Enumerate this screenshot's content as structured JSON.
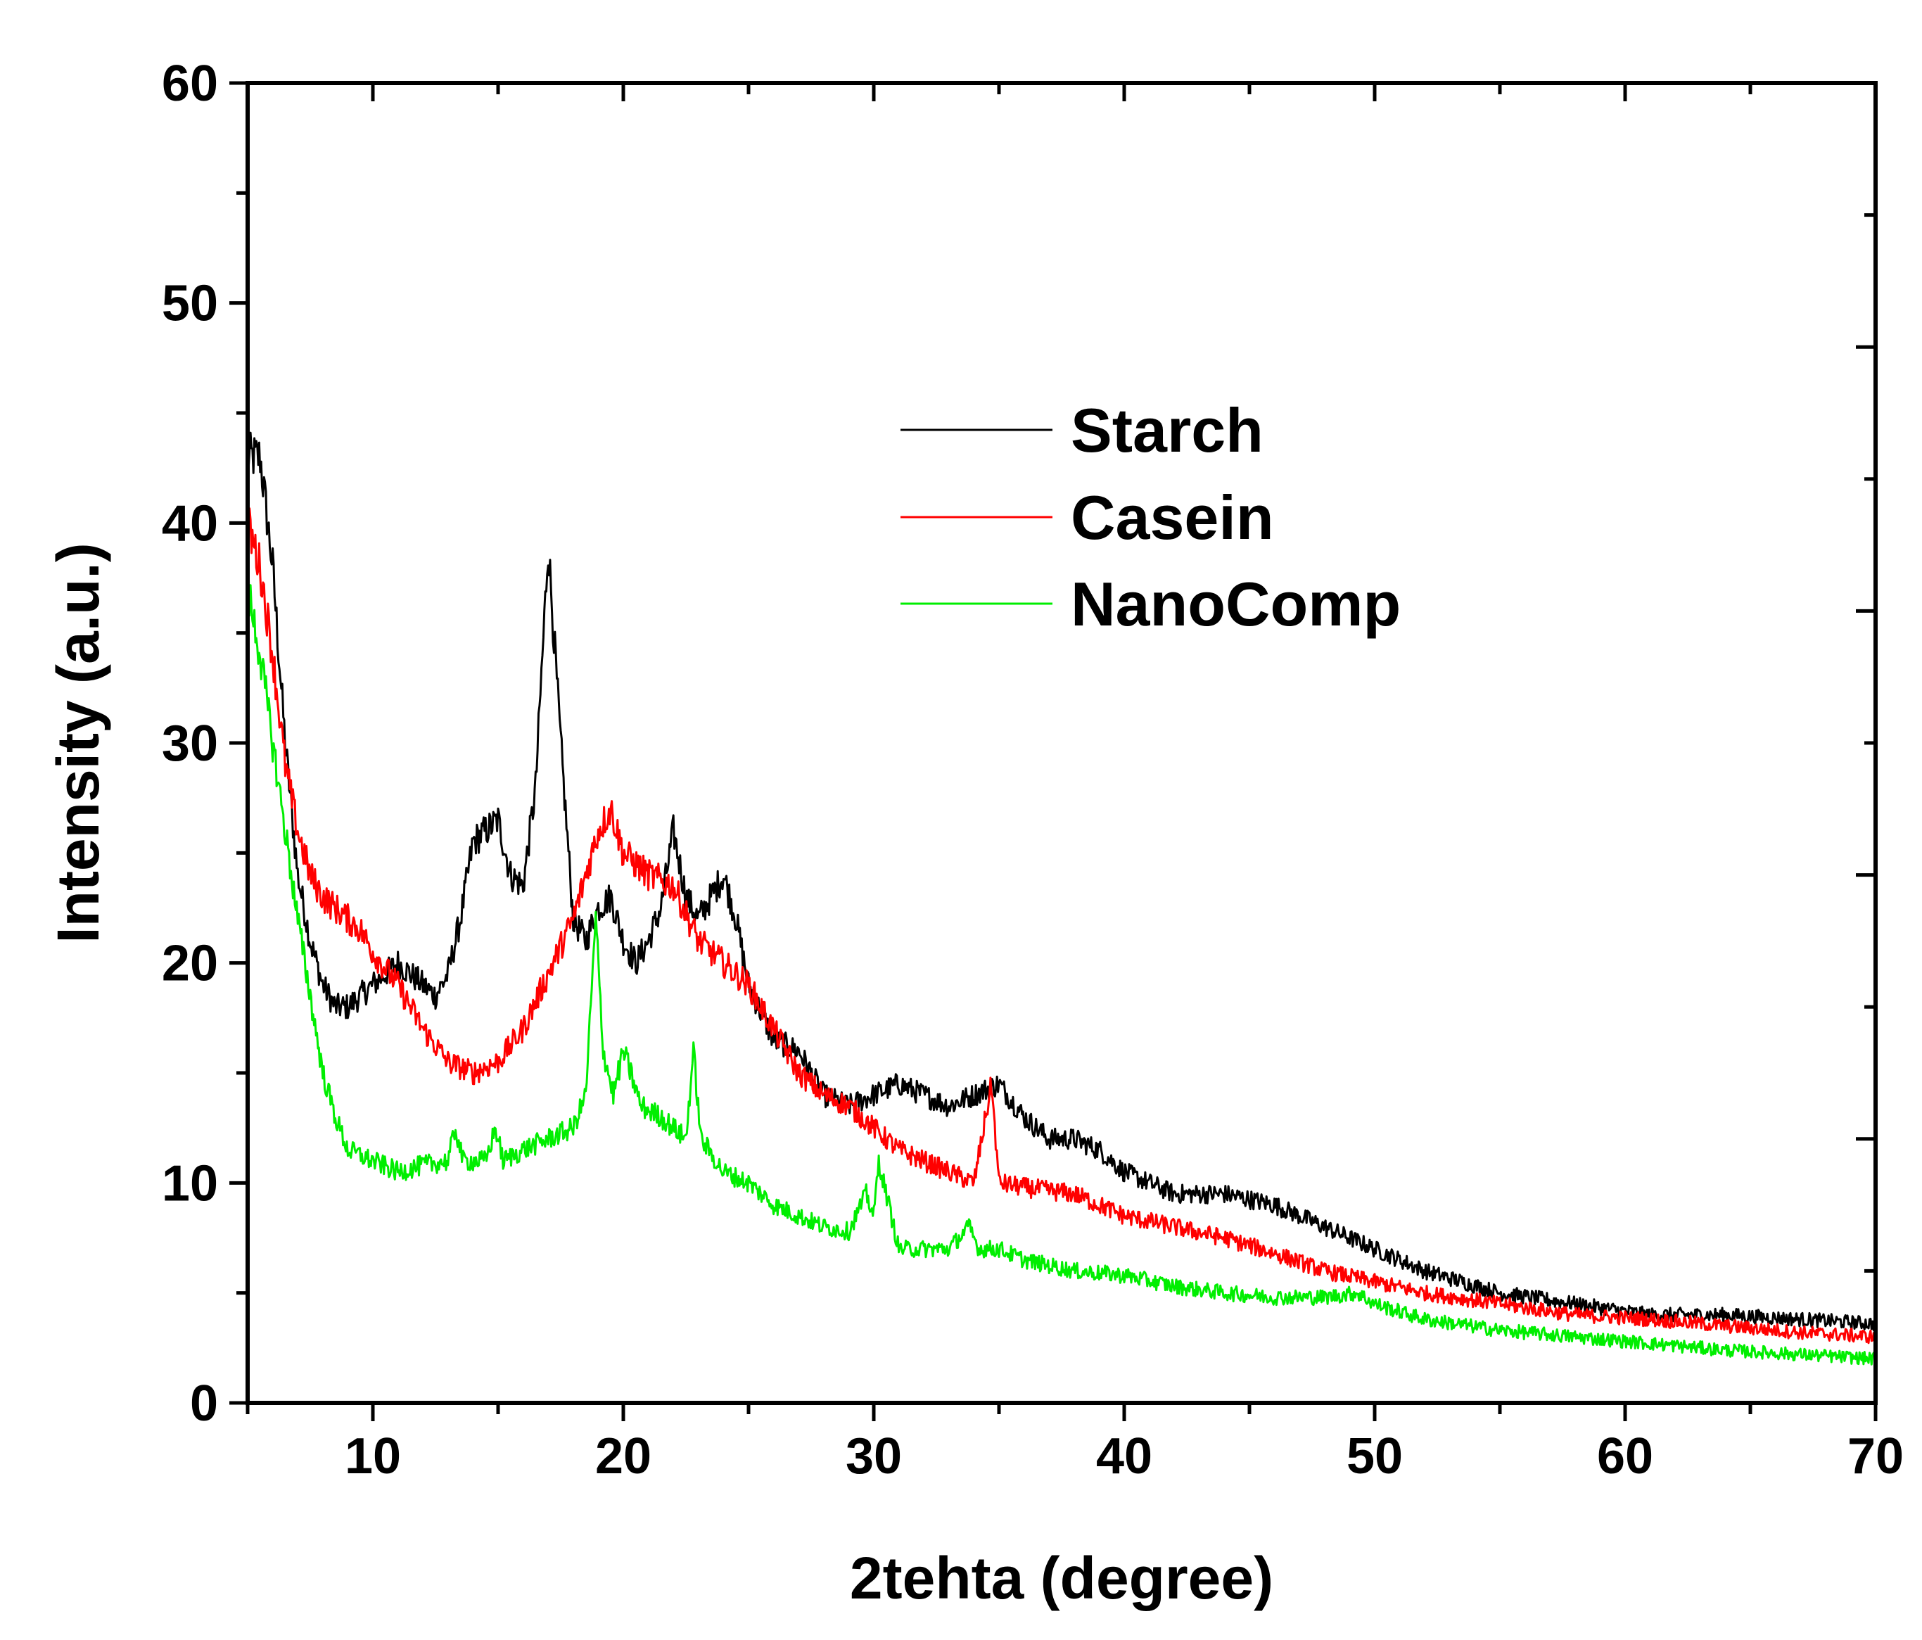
{
  "chart_data": {
    "type": "line",
    "xlabel": "2tehta (degree)",
    "ylabel": "Intensity (a.u.)",
    "xlim": [
      5,
      70
    ],
    "ylim": [
      0,
      60
    ],
    "xticks": [
      10,
      20,
      30,
      40,
      50,
      60,
      70
    ],
    "yticks": [
      0,
      10,
      20,
      30,
      40,
      50,
      60
    ],
    "grid": false,
    "legend_position": "upper-center",
    "series": [
      {
        "name": "Starch",
        "color": "#000000",
        "x": [
          5,
          5.5,
          6,
          6.5,
          7,
          7.5,
          8,
          8.5,
          9,
          9.5,
          10,
          11,
          12,
          12.5,
          13,
          13.5,
          14,
          14.5,
          15,
          15.5,
          16,
          16.5,
          17,
          17.5,
          18,
          18.5,
          19,
          19.5,
          20,
          20.5,
          21,
          21.5,
          22,
          22.5,
          23,
          23.5,
          24,
          24.5,
          25,
          26,
          27,
          28,
          29,
          30,
          31,
          32,
          33,
          34,
          35,
          36,
          37,
          38,
          39,
          40,
          42,
          44,
          46,
          48,
          50,
          52,
          55,
          58,
          61,
          64,
          67,
          70
        ],
        "values": [
          43,
          43,
          38,
          30,
          24,
          21,
          19,
          18,
          18,
          18.5,
          19,
          20,
          19,
          18.5,
          19.5,
          22,
          25.5,
          26,
          26.5,
          24,
          23.5,
          28,
          39,
          30,
          22,
          21,
          22.5,
          23,
          21,
          20,
          21,
          22.5,
          26,
          23,
          22,
          23,
          24,
          22,
          19,
          16.5,
          16,
          14,
          13.5,
          14,
          14.5,
          14,
          13.5,
          14,
          14.5,
          13,
          12,
          12,
          11.5,
          10.5,
          9.5,
          9.5,
          9,
          8,
          7,
          6,
          5,
          4.5,
          4,
          4,
          3.8,
          3.6
        ]
      },
      {
        "name": "Casein",
        "color": "#ff0000",
        "x": [
          5,
          5.5,
          6,
          6.5,
          7,
          7.5,
          8,
          8.5,
          9,
          9.5,
          10,
          11,
          12,
          13,
          14,
          15,
          16,
          17,
          18,
          19,
          19.5,
          20,
          21,
          22,
          23,
          24,
          25,
          26,
          27,
          28,
          29,
          30,
          31,
          32,
          33,
          34,
          34.7,
          35,
          36,
          38,
          40,
          42,
          44,
          46,
          48,
          50,
          52,
          55,
          58,
          61,
          64,
          67,
          70
        ],
        "values": [
          40,
          38,
          34,
          29,
          26,
          24,
          23,
          22.5,
          22,
          21.5,
          20.5,
          19,
          17,
          15.5,
          15,
          15.5,
          17,
          19.5,
          22,
          26,
          27,
          25,
          24,
          23.5,
          21,
          20,
          19,
          17,
          15,
          14,
          13.5,
          12.5,
          11.5,
          11,
          10.5,
          10,
          14.5,
          10,
          9.8,
          9.5,
          8.5,
          8,
          7.5,
          6.8,
          6,
          5.5,
          5,
          4.5,
          4,
          3.8,
          3.5,
          3.2,
          3
        ]
      },
      {
        "name": "NanoComp",
        "color": "#00ee00",
        "x": [
          5,
          5.5,
          6,
          6.5,
          7,
          7.5,
          8,
          8.5,
          9,
          10,
          11,
          12,
          13,
          13.3,
          13.6,
          14,
          14.5,
          14.9,
          15.2,
          16,
          17,
          18,
          18.5,
          18.9,
          19.2,
          19.6,
          20,
          20.3,
          20.7,
          21.5,
          22,
          22.5,
          22.8,
          23.1,
          24,
          25,
          26,
          27,
          28,
          29,
          29.7,
          30,
          30.2,
          30.6,
          31,
          32,
          33,
          33.8,
          34.2,
          35,
          36,
          38,
          40,
          42,
          44,
          46,
          48,
          49.3,
          50,
          52,
          55,
          58,
          61,
          64,
          67,
          70
        ],
        "values": [
          37,
          34,
          30,
          26,
          22,
          18.5,
          15,
          13,
          11.5,
          11,
          10.5,
          10.8,
          11,
          12.5,
          11,
          11,
          11,
          12.5,
          11,
          11.5,
          12,
          12.5,
          14,
          22,
          16,
          14,
          16,
          15,
          13.5,
          13,
          12.5,
          12,
          16,
          12,
          10.5,
          10,
          9,
          8.5,
          8,
          7.8,
          9.5,
          8.5,
          11,
          9,
          7,
          7,
          7,
          8,
          7,
          7,
          6.5,
          6,
          5.8,
          5.3,
          5,
          4.8,
          4.8,
          5,
          4.5,
          3.8,
          3.3,
          3,
          2.7,
          2.4,
          2.2,
          2
        ]
      }
    ]
  }
}
